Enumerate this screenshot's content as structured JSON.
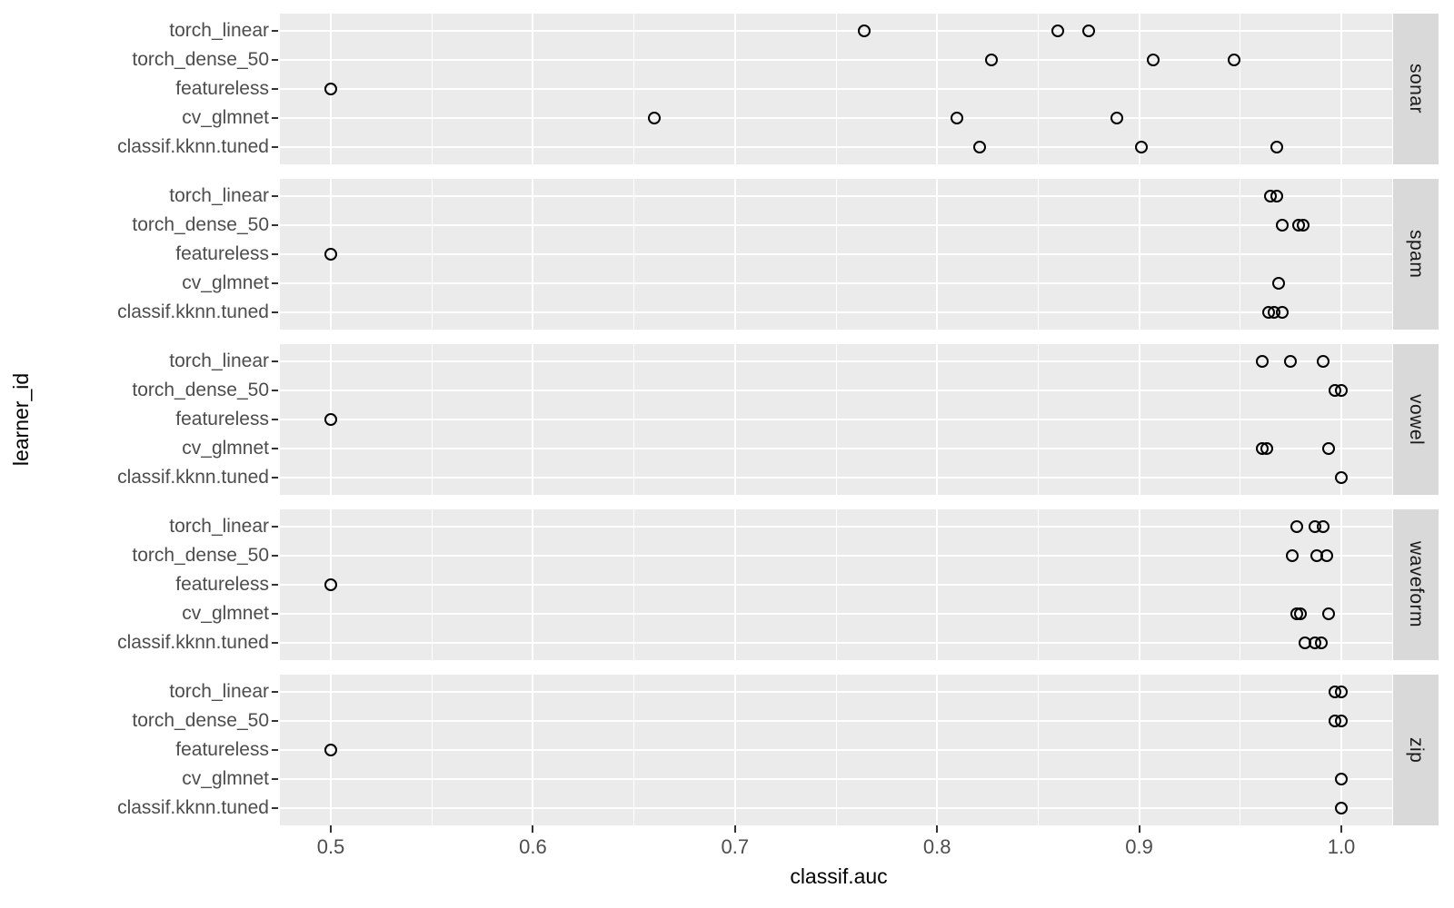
{
  "figure": {
    "type_note": "ggplot2 faceted dot plot",
    "colors": {
      "background": "#ffffff",
      "panel_bg": "#ebebeb",
      "grid": "#ffffff",
      "strip_bg": "#d9d9d9",
      "strip_text": "#1a1a1a",
      "tick_label": "#4d4d4d",
      "axis_title": "#000000",
      "point_stroke": "#000000"
    }
  },
  "chart_data": {
    "type": "scatter",
    "title": "",
    "xlabel": "classif.auc",
    "ylabel": "learner_id",
    "xlim": [
      0.475,
      1.025
    ],
    "x_tick_labels": [
      "0.5",
      "0.6",
      "0.7",
      "0.8",
      "0.9",
      "1.0"
    ],
    "grid": "on",
    "legend": "none",
    "point_shape": "open-circle",
    "facet_strip_side": "right",
    "y_categories_top_to_bottom": [
      "torch_linear",
      "torch_dense_50",
      "featureless",
      "cv_glmnet",
      "classif.kknn.tuned"
    ],
    "facets": [
      {
        "label": "sonar",
        "series": [
          {
            "learner": "torch_linear",
            "values": [
              0.764,
              0.86,
              0.875
            ]
          },
          {
            "learner": "torch_dense_50",
            "values": [
              0.827,
              0.907,
              0.947
            ]
          },
          {
            "learner": "featureless",
            "values": [
              0.5
            ]
          },
          {
            "learner": "cv_glmnet",
            "values": [
              0.66,
              0.81,
              0.889
            ]
          },
          {
            "learner": "classif.kknn.tuned",
            "values": [
              0.821,
              0.901,
              0.968
            ]
          }
        ]
      },
      {
        "label": "spam",
        "series": [
          {
            "learner": "torch_linear",
            "values": [
              0.965,
              0.968
            ]
          },
          {
            "learner": "torch_dense_50",
            "values": [
              0.971,
              0.979,
              0.981
            ]
          },
          {
            "learner": "featureless",
            "values": [
              0.5
            ]
          },
          {
            "learner": "cv_glmnet",
            "values": [
              0.969
            ]
          },
          {
            "learner": "classif.kknn.tuned",
            "values": [
              0.964,
              0.967,
              0.971
            ]
          }
        ]
      },
      {
        "label": "vowel",
        "series": [
          {
            "learner": "torch_linear",
            "values": [
              0.961,
              0.975,
              0.991
            ]
          },
          {
            "learner": "torch_dense_50",
            "values": [
              0.997,
              1.0
            ]
          },
          {
            "learner": "featureless",
            "values": [
              0.5
            ]
          },
          {
            "learner": "cv_glmnet",
            "values": [
              0.961,
              0.963,
              0.994
            ]
          },
          {
            "learner": "classif.kknn.tuned",
            "values": [
              1.0
            ]
          }
        ]
      },
      {
        "label": "waveform",
        "series": [
          {
            "learner": "torch_linear",
            "values": [
              0.978,
              0.987,
              0.991
            ]
          },
          {
            "learner": "torch_dense_50",
            "values": [
              0.976,
              0.988,
              0.993
            ]
          },
          {
            "learner": "featureless",
            "values": [
              0.5
            ]
          },
          {
            "learner": "cv_glmnet",
            "values": [
              0.978,
              0.98,
              0.994
            ]
          },
          {
            "learner": "classif.kknn.tuned",
            "values": [
              0.982,
              0.987,
              0.99
            ]
          }
        ]
      },
      {
        "label": "zip",
        "series": [
          {
            "learner": "torch_linear",
            "values": [
              0.997,
              1.0
            ]
          },
          {
            "learner": "torch_dense_50",
            "values": [
              0.997,
              1.0
            ]
          },
          {
            "learner": "featureless",
            "values": [
              0.5
            ]
          },
          {
            "learner": "cv_glmnet",
            "values": [
              1.0
            ]
          },
          {
            "learner": "classif.kknn.tuned",
            "values": [
              1.0
            ]
          }
        ]
      }
    ]
  }
}
